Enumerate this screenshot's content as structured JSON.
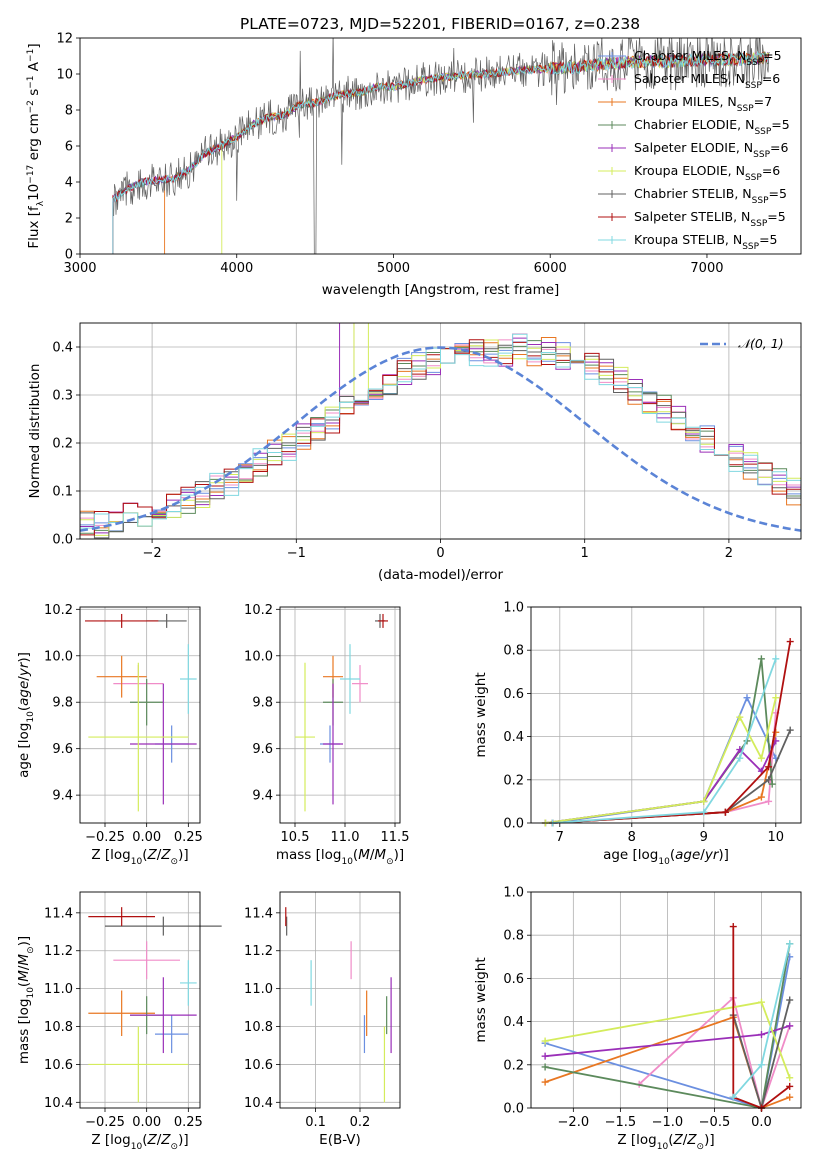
{
  "title": "PLATE=0723, MJD=52201, FIBERID=0167, z=0.238",
  "colors": {
    "Chabrier MILES": "#6b8fe0",
    "Salpeter MILES": "#f08cc8",
    "Kroupa MILES": "#e87722",
    "Chabrier ELODIE": "#5c8a5c",
    "Salpeter ELODIE": "#9a2fb8",
    "Kroupa ELODIE": "#d4ec5c",
    "Chabrier STELIB": "#606060",
    "Salpeter STELIB": "#b01010",
    "Kroupa STELIB": "#80d8e0"
  },
  "chart_data": [
    {
      "id": "spectrum",
      "type": "line",
      "title": "PLATE=0723, MJD=52201, FIBERID=0167, z=0.238",
      "xlabel": "wavelength [Angstrom, rest frame]",
      "ylabel": "Flux [f",
      "ylabel_full": "Flux [fλ10^-17 erg cm^-2 s^-1 A^-1]",
      "xlim": [
        3000,
        7600
      ],
      "ylim": [
        0,
        12
      ],
      "xticks": [
        "3000",
        "4000",
        "5000",
        "6000",
        "7000"
      ],
      "yticks": [
        "0",
        "2",
        "4",
        "6",
        "8",
        "10",
        "12"
      ],
      "legend_position": "right",
      "grid": false,
      "continuum": {
        "x": [
          3210,
          3300,
          3400,
          3500,
          3600,
          3700,
          3800,
          3900,
          4000,
          4100,
          4200,
          4300,
          4400,
          4500,
          4600,
          4700,
          4800,
          4900,
          5000,
          5200,
          5400,
          5600,
          5800,
          6000,
          6200,
          6400,
          6600,
          6800,
          7000,
          7200,
          7350
        ],
        "y": [
          3.0,
          3.6,
          4.0,
          4.1,
          4.2,
          4.7,
          5.6,
          6.0,
          6.5,
          7.2,
          7.6,
          7.7,
          8.3,
          8.4,
          8.7,
          8.9,
          9.0,
          9.3,
          9.3,
          9.7,
          9.9,
          10.0,
          10.2,
          10.3,
          10.4,
          10.6,
          10.7,
          10.7,
          10.8,
          10.8,
          10.9
        ]
      },
      "series": [
        {
          "name": "Chabrier MILES, N",
          "sub": "SSP",
          "suffix": "=5"
        },
        {
          "name": "Salpeter MILES, N",
          "sub": "SSP",
          "suffix": "=6"
        },
        {
          "name": "Kroupa MILES, N",
          "sub": "SSP",
          "suffix": "=7"
        },
        {
          "name": "Chabrier ELODIE, N",
          "sub": "SSP",
          "suffix": "=5"
        },
        {
          "name": "Salpeter ELODIE, N",
          "sub": "SSP",
          "suffix": "=6"
        },
        {
          "name": "Kroupa ELODIE, N",
          "sub": "SSP",
          "suffix": "=6"
        },
        {
          "name": "Chabrier STELIB, N",
          "sub": "SSP",
          "suffix": "=5"
        },
        {
          "name": "Salpeter STELIB, N",
          "sub": "SSP",
          "suffix": "=5"
        },
        {
          "name": "Kroupa STELIB, N",
          "sub": "SSP",
          "suffix": "=5"
        }
      ]
    },
    {
      "id": "residuals",
      "type": "bar",
      "xlabel": "(data-model)/error",
      "ylabel": "Normed distribution",
      "xlim": [
        -2.5,
        2.5
      ],
      "ylim": [
        0,
        0.45
      ],
      "xticks": [
        "−2",
        "−1",
        "0",
        "1",
        "2"
      ],
      "yticks": [
        "0.0",
        "0.1",
        "0.2",
        "0.3",
        "0.4"
      ],
      "grid": true,
      "legend_position": "top-right",
      "legend": "𝒩(0, 1)",
      "bin_edges_from": -2.5,
      "bin_width": 0.1,
      "reference_curve": "N(0,1)",
      "histogram_values": [
        0.03,
        0.03,
        0.04,
        0.05,
        0.05,
        0.06,
        0.07,
        0.08,
        0.09,
        0.11,
        0.12,
        0.14,
        0.16,
        0.18,
        0.19,
        0.21,
        0.23,
        0.25,
        0.27,
        0.28,
        0.31,
        0.33,
        0.35,
        0.36,
        0.37,
        0.37,
        0.38,
        0.39,
        0.39,
        0.39,
        0.4,
        0.39,
        0.39,
        0.38,
        0.37,
        0.36,
        0.35,
        0.33,
        0.31,
        0.29,
        0.27,
        0.25,
        0.23,
        0.21,
        0.19,
        0.17,
        0.15,
        0.13,
        0.12,
        0.1
      ]
    },
    {
      "id": "age_vs_Z",
      "type": "scatter",
      "xlabel": "Z [log",
      "xlabel_full": "Z [log10(Z/Z⊙)]",
      "ylabel": "age  [log",
      "ylabel_full": "age  [log10(age/yr)]",
      "xlim": [
        -0.4,
        0.32
      ],
      "ylim": [
        9.28,
        10.21
      ],
      "xticks": [
        "−0.25",
        "0.00",
        "0.25"
      ],
      "yticks": [
        "9.4",
        "9.6",
        "9.8",
        "10.0",
        "10.2"
      ],
      "grid": true,
      "points": [
        {
          "series": "Chabrier MILES",
          "x": 0.15,
          "y": 9.62,
          "xerr": 0.1,
          "yerr": 0.08
        },
        {
          "series": "Salpeter MILES",
          "x": -0.05,
          "y": 9.88,
          "xerr": 0.15,
          "yerr": 0.08
        },
        {
          "series": "Kroupa MILES",
          "x": -0.15,
          "y": 9.91,
          "xerr": 0.15,
          "yerr": 0.09
        },
        {
          "series": "Chabrier ELODIE",
          "x": 0.0,
          "y": 9.8,
          "xerr": 0.1,
          "yerr": 0.1
        },
        {
          "series": "Salpeter ELODIE",
          "x": 0.1,
          "y": 9.62,
          "xerr": 0.2,
          "yerr": 0.26
        },
        {
          "series": "Kroupa ELODIE",
          "x": -0.05,
          "y": 9.65,
          "xerr": 0.3,
          "yerr": 0.32
        },
        {
          "series": "Chabrier STELIB",
          "x": 0.12,
          "y": 10.15,
          "xerr": 0.12,
          "yerr": 0.03
        },
        {
          "series": "Salpeter STELIB",
          "x": -0.15,
          "y": 10.15,
          "xerr": 0.22,
          "yerr": 0.03
        },
        {
          "series": "Kroupa STELIB",
          "x": 0.25,
          "y": 9.9,
          "xerr": 0.05,
          "yerr": 0.15
        }
      ]
    },
    {
      "id": "age_vs_mass",
      "type": "scatter",
      "xlabel": "mass [log",
      "xlabel_full": "mass [log10(M/M⊙)]",
      "xlim": [
        10.35,
        11.55
      ],
      "ylim": [
        9.28,
        10.21
      ],
      "xticks": [
        "10.5",
        "11.0",
        "11.5"
      ],
      "yticks": [
        "9.4",
        "9.6",
        "9.8",
        "10.0",
        "10.2"
      ],
      "grid": true,
      "points": [
        {
          "series": "Chabrier MILES",
          "x": 10.85,
          "y": 9.62,
          "xerr": 0.1,
          "yerr": 0.08
        },
        {
          "series": "Salpeter MILES",
          "x": 11.15,
          "y": 9.88,
          "xerr": 0.08,
          "yerr": 0.08
        },
        {
          "series": "Kroupa MILES",
          "x": 10.88,
          "y": 9.91,
          "xerr": 0.1,
          "yerr": 0.09
        },
        {
          "series": "Chabrier ELODIE",
          "x": 10.88,
          "y": 9.8,
          "xerr": 0.1,
          "yerr": 0.1
        },
        {
          "series": "Salpeter ELODIE",
          "x": 10.88,
          "y": 9.62,
          "xerr": 0.1,
          "yerr": 0.26
        },
        {
          "series": "Kroupa ELODIE",
          "x": 10.6,
          "y": 9.65,
          "xerr": 0.1,
          "yerr": 0.32
        },
        {
          "series": "Chabrier STELIB",
          "x": 11.35,
          "y": 10.15,
          "xerr": 0.05,
          "yerr": 0.03
        },
        {
          "series": "Salpeter STELIB",
          "x": 11.38,
          "y": 10.15,
          "xerr": 0.05,
          "yerr": 0.03
        },
        {
          "series": "Kroupa STELIB",
          "x": 11.05,
          "y": 9.9,
          "xerr": 0.1,
          "yerr": 0.15
        }
      ]
    },
    {
      "id": "massweight_vs_age",
      "type": "line",
      "xlabel": "age  [log",
      "xlabel_full": "age  [log10(age/yr)]",
      "ylabel": "mass weight",
      "xlim": [
        6.6,
        10.35
      ],
      "ylim": [
        0,
        1
      ],
      "xticks": [
        "7",
        "8",
        "9",
        "10"
      ],
      "yticks": [
        "0.0",
        "0.2",
        "0.4",
        "0.6",
        "0.8",
        "1.0"
      ],
      "grid": true,
      "series": [
        {
          "name": "Chabrier MILES",
          "x": [
            6.9,
            9.0,
            9.6,
            10.0
          ],
          "y": [
            0.0,
            0.1,
            0.58,
            0.3
          ]
        },
        {
          "name": "Salpeter MILES",
          "x": [
            6.9,
            9.3,
            9.9,
            10.0
          ],
          "y": [
            0.0,
            0.05,
            0.1,
            0.51
          ]
        },
        {
          "name": "Kroupa MILES",
          "x": [
            6.9,
            9.3,
            9.8,
            10.0
          ],
          "y": [
            0.0,
            0.05,
            0.12,
            0.42
          ]
        },
        {
          "name": "Chabrier ELODIE",
          "x": [
            6.8,
            9.0,
            9.6,
            9.8,
            9.95
          ],
          "y": [
            0.0,
            0.1,
            0.38,
            0.76,
            0.18
          ]
        },
        {
          "name": "Salpeter ELODIE",
          "x": [
            6.8,
            9.0,
            9.5,
            9.8,
            10.0
          ],
          "y": [
            0.0,
            0.1,
            0.34,
            0.24,
            0.38
          ]
        },
        {
          "name": "Kroupa ELODIE",
          "x": [
            6.8,
            9.0,
            9.5,
            9.8,
            10.0
          ],
          "y": [
            0.0,
            0.1,
            0.49,
            0.3,
            0.58
          ]
        },
        {
          "name": "Chabrier STELIB",
          "x": [
            6.9,
            9.3,
            9.9,
            10.2
          ],
          "y": [
            0.0,
            0.05,
            0.2,
            0.43
          ]
        },
        {
          "name": "Salpeter STELIB",
          "x": [
            6.9,
            9.3,
            9.9,
            10.2
          ],
          "y": [
            0.0,
            0.05,
            0.26,
            0.84
          ]
        },
        {
          "name": "Kroupa STELIB",
          "x": [
            6.9,
            9.0,
            9.5,
            10.0
          ],
          "y": [
            0.0,
            0.05,
            0.3,
            0.76
          ]
        }
      ]
    },
    {
      "id": "mass_vs_Z",
      "type": "scatter",
      "xlabel": "Z [log",
      "xlabel_full": "Z [log10(Z/Z⊙)]",
      "ylabel": "mass [log",
      "ylabel_full": "mass [log10(M/M⊙)]",
      "xlim": [
        -0.4,
        0.32
      ],
      "ylim": [
        10.37,
        11.51
      ],
      "xticks": [
        "−0.25",
        "0.00",
        "0.25"
      ],
      "yticks": [
        "10.4",
        "10.6",
        "10.8",
        "11.0",
        "11.2",
        "11.4"
      ],
      "grid": true,
      "points": [
        {
          "series": "Chabrier MILES",
          "x": 0.15,
          "y": 10.76,
          "xerr": 0.1,
          "yerr": 0.1
        },
        {
          "series": "Salpeter MILES",
          "x": 0.0,
          "y": 11.15,
          "xerr": 0.2,
          "yerr": 0.1
        },
        {
          "series": "Kroupa MILES",
          "x": -0.15,
          "y": 10.87,
          "xerr": 0.2,
          "yerr": 0.12
        },
        {
          "series": "Chabrier ELODIE",
          "x": 0.0,
          "y": 10.86,
          "xerr": 0.1,
          "yerr": 0.1
        },
        {
          "series": "Salpeter ELODIE",
          "x": 0.1,
          "y": 10.86,
          "xerr": 0.2,
          "yerr": 0.2
        },
        {
          "series": "Kroupa ELODIE",
          "x": -0.05,
          "y": 10.6,
          "xerr": 0.3,
          "yerr": 0.2
        },
        {
          "series": "Chabrier STELIB",
          "x": 0.1,
          "y": 11.33,
          "xerr": 0.35,
          "yerr": 0.05
        },
        {
          "series": "Salpeter STELIB",
          "x": -0.15,
          "y": 11.38,
          "xerr": 0.2,
          "yerr": 0.05
        },
        {
          "series": "Kroupa STELIB",
          "x": 0.25,
          "y": 11.03,
          "xerr": 0.05,
          "yerr": 0.12
        }
      ]
    },
    {
      "id": "mass_vs_EBV",
      "type": "scatter",
      "xlabel": "E(B-V)",
      "xlim": [
        0.02,
        0.29
      ],
      "ylim": [
        10.37,
        11.51
      ],
      "xticks": [
        "0.1",
        "0.2"
      ],
      "yticks": [
        "10.4",
        "10.6",
        "10.8",
        "11.0",
        "11.2",
        "11.4"
      ],
      "grid": true,
      "points": [
        {
          "series": "Chabrier MILES",
          "x": 0.21,
          "y": 10.76,
          "yerr": 0.1
        },
        {
          "series": "Salpeter MILES",
          "x": 0.18,
          "y": 11.15,
          "yerr": 0.1
        },
        {
          "series": "Kroupa MILES",
          "x": 0.215,
          "y": 10.87,
          "yerr": 0.12
        },
        {
          "series": "Chabrier ELODIE",
          "x": 0.26,
          "y": 10.86,
          "yerr": 0.1
        },
        {
          "series": "Salpeter ELODIE",
          "x": 0.27,
          "y": 10.86,
          "yerr": 0.2
        },
        {
          "series": "Kroupa ELODIE",
          "x": 0.255,
          "y": 10.6,
          "yerr": 0.2
        },
        {
          "series": "Chabrier STELIB",
          "x": 0.035,
          "y": 11.33,
          "yerr": 0.05
        },
        {
          "series": "Salpeter STELIB",
          "x": 0.033,
          "y": 11.38,
          "yerr": 0.05
        },
        {
          "series": "Kroupa STELIB",
          "x": 0.09,
          "y": 11.03,
          "yerr": 0.12
        }
      ]
    },
    {
      "id": "massweight_vs_Z",
      "type": "line",
      "xlabel": "Z [log",
      "xlabel_full": "Z [log10(Z/Z⊙)]",
      "ylabel": "mass weight",
      "xlim": [
        -2.45,
        0.42
      ],
      "ylim": [
        0,
        1
      ],
      "xticks": [
        "−2.0",
        "−1.5",
        "−1.0",
        "−0.5",
        "0.0"
      ],
      "yticks": [
        "0.0",
        "0.2",
        "0.4",
        "0.6",
        "0.8",
        "1.0"
      ],
      "grid": true,
      "series": [
        {
          "name": "Chabrier MILES",
          "x": [
            -2.3,
            0.0,
            0.3
          ],
          "y": [
            0.3,
            0.0,
            0.7
          ]
        },
        {
          "name": "Salpeter MILES",
          "x": [
            -1.3,
            -0.3,
            0.0,
            0.3
          ],
          "y": [
            0.11,
            0.51,
            0.0,
            0.38
          ]
        },
        {
          "name": "Kroupa MILES",
          "x": [
            -2.3,
            -0.3,
            0.0,
            0.3
          ],
          "y": [
            0.12,
            0.42,
            0.0,
            0.05
          ]
        },
        {
          "name": "Chabrier ELODIE",
          "x": [
            -2.3,
            0.0,
            0.3
          ],
          "y": [
            0.19,
            0.0,
            0.76
          ]
        },
        {
          "name": "Salpeter ELODIE",
          "x": [
            -2.3,
            0.0,
            0.3
          ],
          "y": [
            0.24,
            0.34,
            0.38
          ]
        },
        {
          "name": "Kroupa ELODIE",
          "x": [
            -2.3,
            0.0,
            0.3
          ],
          "y": [
            0.31,
            0.49,
            0.14
          ]
        },
        {
          "name": "Chabrier STELIB",
          "x": [
            -0.3,
            0.0,
            0.3
          ],
          "y": [
            0.43,
            0.0,
            0.5
          ]
        },
        {
          "name": "Salpeter STELIB",
          "x": [
            -0.3,
            -0.3,
            0.0,
            0.3
          ],
          "y": [
            0.84,
            0.05,
            0.0,
            0.1
          ]
        },
        {
          "name": "Kroupa STELIB",
          "x": [
            -0.3,
            0.0,
            0.3
          ],
          "y": [
            0.05,
            0.2,
            0.76
          ]
        }
      ]
    }
  ]
}
